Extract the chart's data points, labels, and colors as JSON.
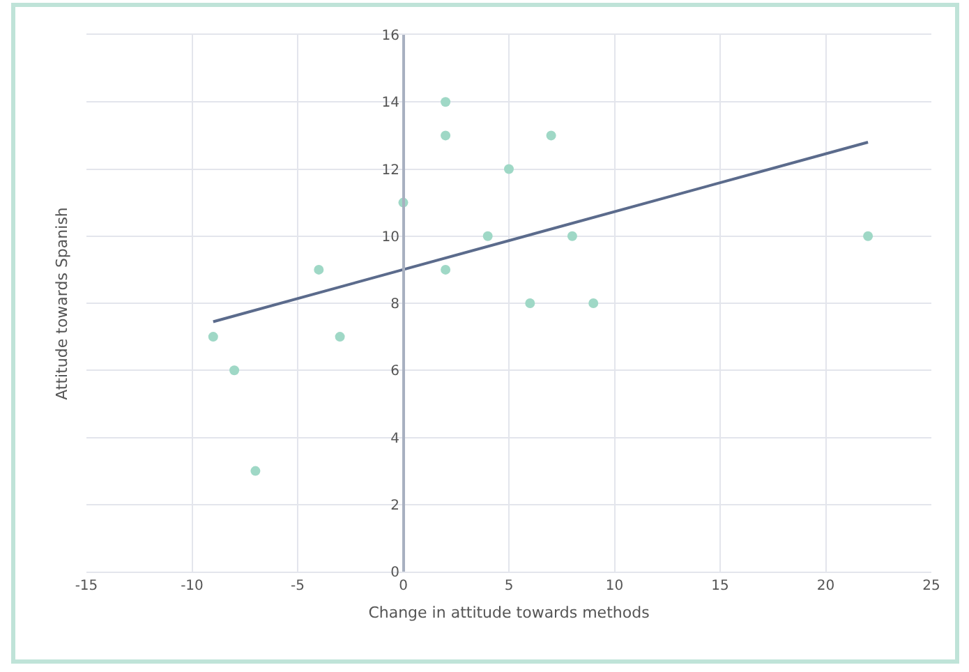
{
  "chart_data": {
    "type": "scatter",
    "xlabel": "Change in attitude towards methods",
    "ylabel": "Attitude towards Spanish",
    "xlim": [
      -15,
      25
    ],
    "xticks": [
      -15,
      -10,
      -5,
      0,
      5,
      10,
      15,
      20,
      25
    ],
    "ylim": [
      0,
      16
    ],
    "yticks": [
      0,
      2,
      4,
      6,
      8,
      10,
      12,
      14,
      16
    ],
    "grid": true,
    "series": [
      {
        "marker": "circle",
        "color": "#9fd8c6",
        "x": [
          -9,
          -8,
          -7,
          -4,
          -3,
          0,
          2,
          2,
          2,
          4,
          5,
          6,
          7,
          8,
          9,
          22
        ],
        "values": [
          7,
          6,
          3,
          9,
          7,
          11,
          14,
          13,
          9,
          10,
          12,
          8,
          13,
          10,
          8,
          10
        ]
      },
      {
        "type": "line",
        "marker": "none",
        "color": "#5b6b8c",
        "x": [
          -9,
          22
        ],
        "values": [
          7.45,
          12.8
        ]
      }
    ]
  }
}
